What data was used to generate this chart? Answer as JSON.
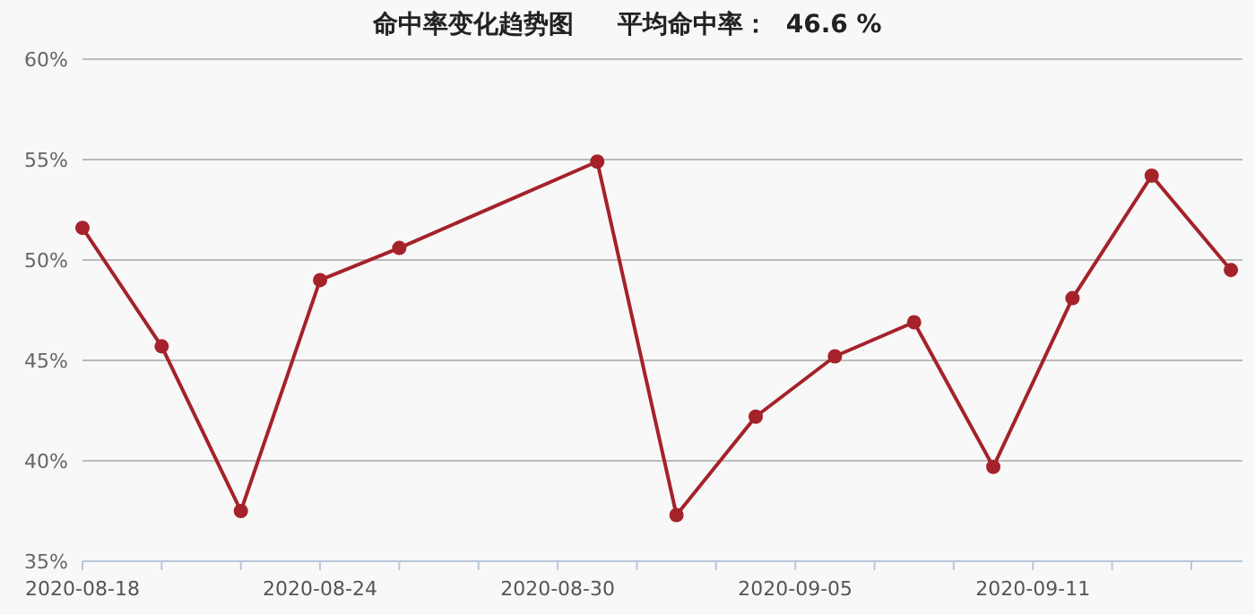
{
  "chart_data": {
    "type": "line",
    "title": "命中率变化趋势图     平均命中率：  46.6 %",
    "x": [
      "2020-08-18",
      "2020-08-20",
      "2020-08-22",
      "2020-08-24",
      "2020-08-26",
      "2020-08-31",
      "2020-09-02",
      "2020-09-04",
      "2020-09-06",
      "2020-09-08",
      "2020-09-10",
      "2020-09-12",
      "2020-09-14",
      "2020-09-16"
    ],
    "series": [
      {
        "color": "#a5222a",
        "values": [
          51.6,
          45.7,
          37.5,
          49.0,
          50.6,
          54.9,
          37.3,
          42.2,
          45.2,
          46.9,
          39.7,
          48.1,
          54.2,
          49.5
        ]
      }
    ],
    "xlim": [
      "2020-08-18",
      "2020-09-16T07:00"
    ],
    "xticks": [
      {
        "value": "2020-08-18",
        "label": "2020-08-18"
      },
      {
        "value": "2020-08-20",
        "label": null
      },
      {
        "value": "2020-08-22",
        "label": null
      },
      {
        "value": "2020-08-24",
        "label": "2020-08-24"
      },
      {
        "value": "2020-08-26",
        "label": null
      },
      {
        "value": "2020-08-28",
        "label": null
      },
      {
        "value": "2020-08-30",
        "label": "2020-08-30"
      },
      {
        "value": "2020-09-01",
        "label": null
      },
      {
        "value": "2020-09-03",
        "label": null
      },
      {
        "value": "2020-09-05",
        "label": "2020-09-05"
      },
      {
        "value": "2020-09-07",
        "label": null
      },
      {
        "value": "2020-09-09",
        "label": null
      },
      {
        "value": "2020-09-11",
        "label": "2020-09-11"
      },
      {
        "value": "2020-09-13",
        "label": null
      },
      {
        "value": "2020-09-15",
        "label": null
      }
    ],
    "ylim": [
      35,
      60
    ],
    "yticks": [
      {
        "value": 35,
        "label": "35%"
      },
      {
        "value": 40,
        "label": "40%"
      },
      {
        "value": 45,
        "label": "45%"
      },
      {
        "value": 50,
        "label": "50%"
      },
      {
        "value": 55,
        "label": "55%"
      },
      {
        "value": 60,
        "label": "60%"
      }
    ],
    "grid": "y",
    "marker": "circle",
    "line_style": "solid"
  }
}
